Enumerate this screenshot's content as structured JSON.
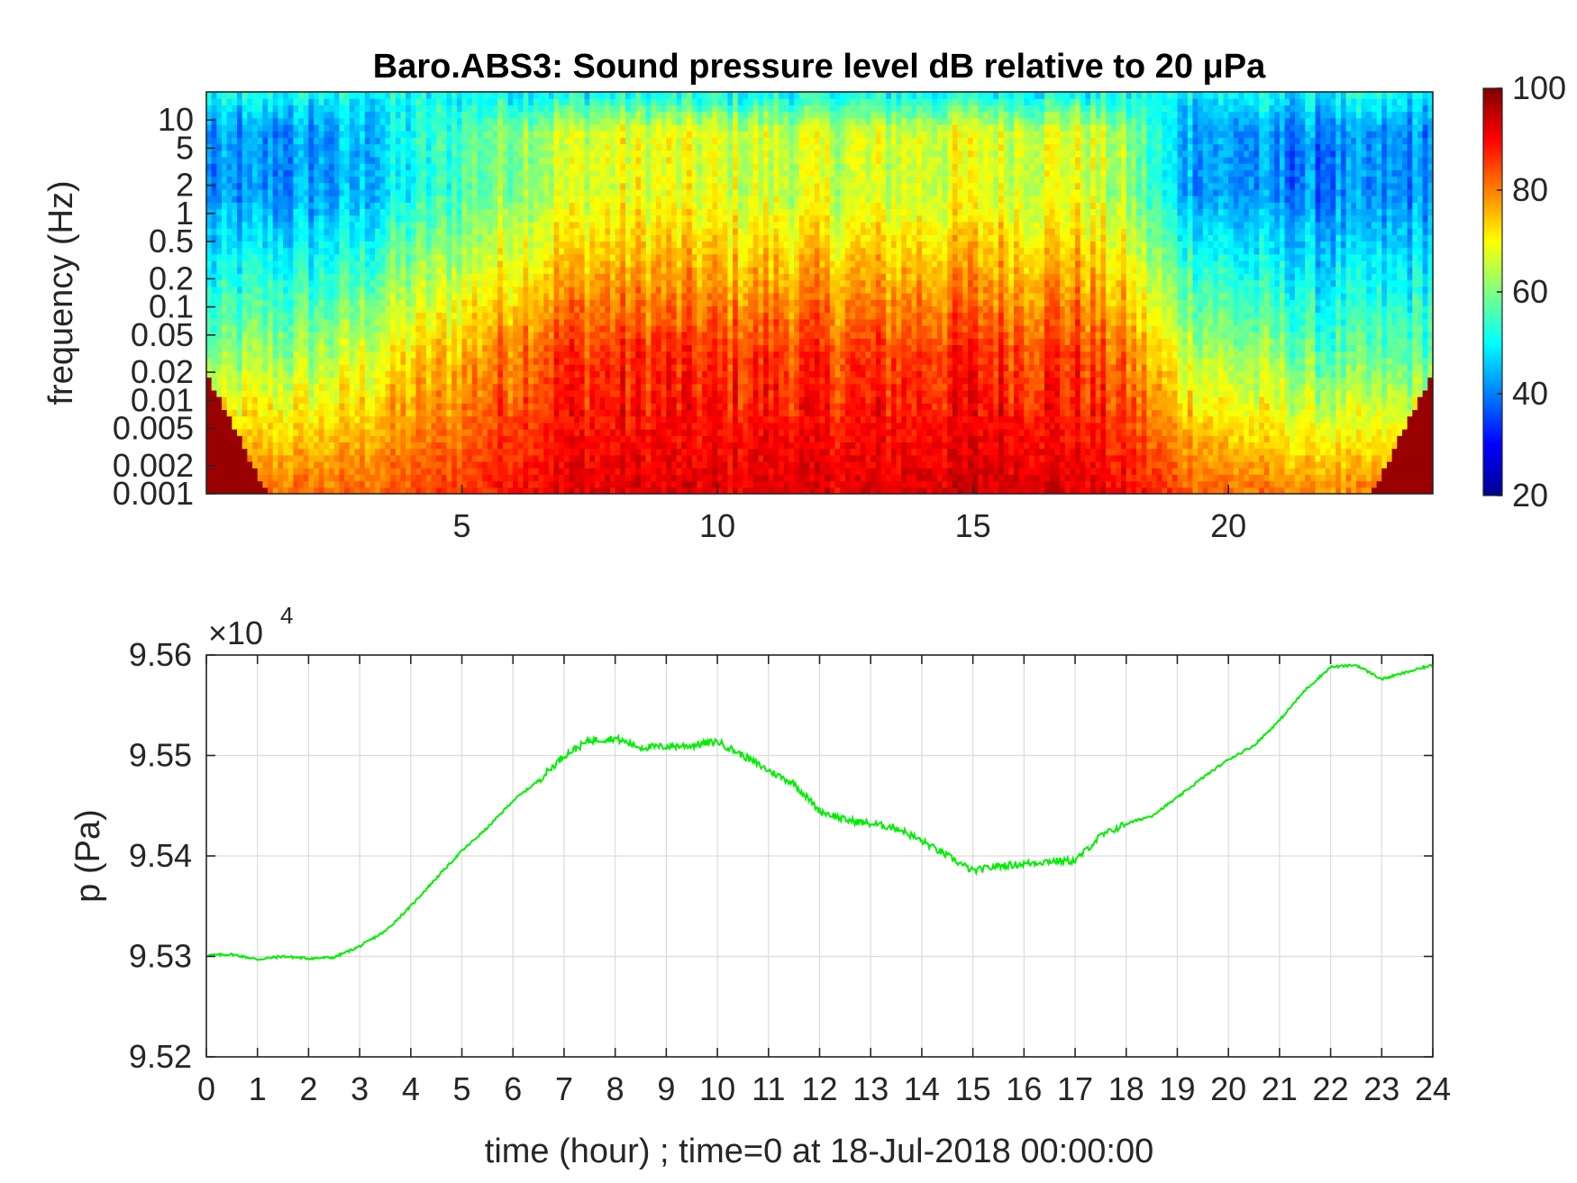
{
  "chart_data": [
    {
      "type": "heatmap",
      "title": "Baro.ABS3: Sound pressure level dB relative to 20 μPa",
      "ylabel": "frequency (Hz)",
      "xlabel": "",
      "xlim": [
        0,
        24
      ],
      "x_ticks": [
        5,
        10,
        15,
        20
      ],
      "y_scale": "log",
      "ylim": [
        0.001,
        20
      ],
      "y_ticks": [
        0.001,
        0.002,
        0.005,
        0.01,
        0.02,
        0.05,
        0.1,
        0.2,
        0.5,
        1,
        2,
        5,
        10
      ],
      "y_tick_labels": [
        "0.001",
        "0.002",
        "0.005",
        "0.01",
        "0.02",
        "0.05",
        "0.1",
        "0.2",
        "0.5",
        "1",
        "2",
        "5",
        "10"
      ],
      "colorbar": {
        "range": [
          20,
          100
        ],
        "ticks": [
          20,
          40,
          60,
          80,
          100
        ],
        "colormap": "jet"
      },
      "level_profile_by_hour": {
        "hours": [
          0,
          1,
          2,
          3,
          4,
          5,
          6,
          7,
          8,
          9,
          10,
          11,
          12,
          13,
          14,
          15,
          16,
          17,
          18,
          19,
          20,
          21,
          22,
          23,
          24
        ],
        "low_freq_db": [
          84,
          82,
          82,
          82,
          84,
          86,
          90,
          92,
          92,
          92,
          92,
          93,
          92,
          92,
          93,
          94,
          94,
          92,
          90,
          85,
          82,
          80,
          79,
          80,
          82
        ],
        "mid_freq_db": [
          58,
          62,
          62,
          66,
          72,
          76,
          82,
          86,
          86,
          86,
          85,
          86,
          85,
          85,
          86,
          87,
          86,
          86,
          80,
          68,
          62,
          60,
          56,
          56,
          58
        ],
        "high_freq_db": [
          40,
          41,
          42,
          44,
          50,
          56,
          62,
          66,
          68,
          68,
          67,
          66,
          66,
          66,
          67,
          68,
          68,
          68,
          62,
          46,
          42,
          40,
          40,
          40,
          42
        ]
      }
    },
    {
      "type": "line",
      "title": "",
      "xlabel": "time (hour) ; time=0 at 18-Jul-2018 00:00:00",
      "ylabel": "p (Pa)",
      "xlim": [
        0,
        24
      ],
      "ylim": [
        95200,
        95600
      ],
      "x_ticks": [
        0,
        1,
        2,
        3,
        4,
        5,
        6,
        7,
        8,
        9,
        10,
        11,
        12,
        13,
        14,
        15,
        16,
        17,
        18,
        19,
        20,
        21,
        22,
        23,
        24
      ],
      "y_ticks": [
        95200,
        95300,
        95400,
        95500,
        95600
      ],
      "y_tick_labels": [
        "9.52",
        "9.53",
        "9.54",
        "9.55",
        "9.56"
      ],
      "y_exponent_base": "×10",
      "y_exponent_power": "4",
      "grid": true,
      "series": [
        {
          "color": "#00ee00",
          "x": [
            0,
            0.5,
            1,
            1.5,
            2,
            2.5,
            3,
            3.5,
            4,
            4.5,
            5,
            5.5,
            6,
            6.5,
            7,
            7.5,
            8,
            8.5,
            9,
            9.5,
            10,
            10.5,
            11,
            11.5,
            12,
            12.5,
            13,
            13.5,
            14,
            14.5,
            15,
            15.5,
            16,
            16.5,
            17,
            17.5,
            18,
            18.5,
            19,
            19.5,
            20,
            20.5,
            21,
            21.5,
            22,
            22.5,
            23,
            23.5,
            24
          ],
          "y": [
            95301,
            95302,
            95297,
            95300,
            95298,
            95299,
            95310,
            95325,
            95350,
            95378,
            95405,
            95428,
            95455,
            95475,
            95500,
            95515,
            95517,
            95508,
            95509,
            95510,
            95514,
            95500,
            95485,
            95472,
            95445,
            95436,
            95432,
            95428,
            95415,
            95400,
            95385,
            95390,
            95392,
            95395,
            95395,
            95420,
            95432,
            95440,
            95458,
            95478,
            95496,
            95510,
            95535,
            95565,
            95588,
            95590,
            95576,
            95583,
            95590
          ]
        }
      ]
    }
  ]
}
